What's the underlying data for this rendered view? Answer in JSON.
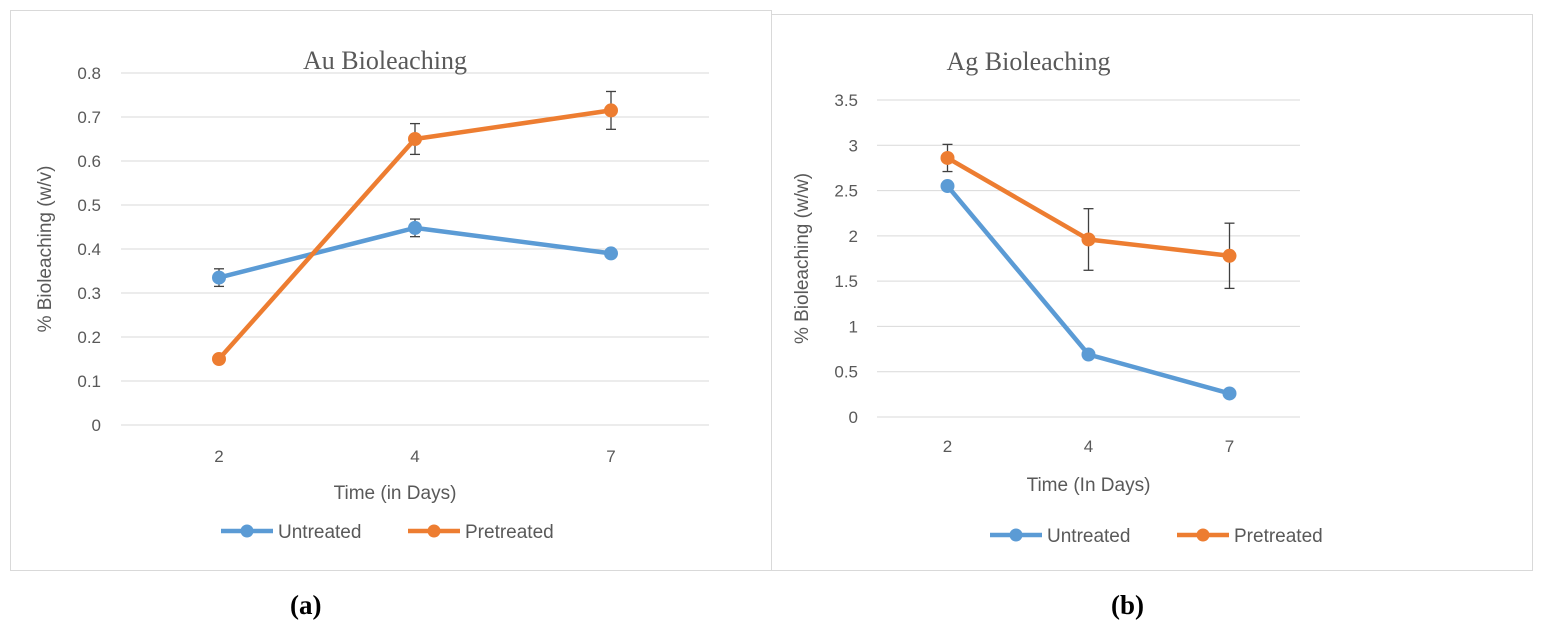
{
  "chart_data": [
    {
      "type": "line",
      "title": "Au Bioleaching",
      "xlabel": "Time (in Days)",
      "ylabel": "% Bioleaching (w/v)",
      "categories": [
        "2",
        "4",
        "7"
      ],
      "ylim": [
        0,
        0.8
      ],
      "yticks": [
        0,
        0.1,
        0.2,
        0.3,
        0.4,
        0.5,
        0.6,
        0.7,
        0.8
      ],
      "grid": true,
      "legend": "bottom",
      "series": [
        {
          "name": "Untreated",
          "color": "#5b9bd5",
          "values": [
            0.335,
            0.448,
            0.39
          ],
          "errors": [
            0.02,
            0.02,
            0
          ]
        },
        {
          "name": "Pretreated",
          "color": "#ed7d31",
          "values": [
            0.15,
            0.65,
            0.715
          ],
          "errors": [
            0,
            0.035,
            0.043
          ]
        }
      ]
    },
    {
      "type": "line",
      "title": "Ag Bioleaching",
      "xlabel": "Time (In Days)",
      "ylabel": "% Bioleaching (w/w)",
      "categories": [
        "2",
        "4",
        "7"
      ],
      "ylim": [
        0,
        3.5
      ],
      "yticks": [
        0,
        0.5,
        1,
        1.5,
        2,
        2.5,
        3,
        3.5
      ],
      "grid": true,
      "legend": "bottom",
      "series": [
        {
          "name": "Untreated",
          "color": "#5b9bd5",
          "values": [
            2.55,
            0.69,
            0.26
          ],
          "errors": [
            0,
            0,
            0
          ]
        },
        {
          "name": "Pretreated",
          "color": "#ed7d31",
          "values": [
            2.86,
            1.96,
            1.78
          ],
          "errors": [
            0.15,
            0.34,
            0.36
          ]
        }
      ]
    }
  ],
  "captions": [
    "(a)",
    "(b)"
  ]
}
